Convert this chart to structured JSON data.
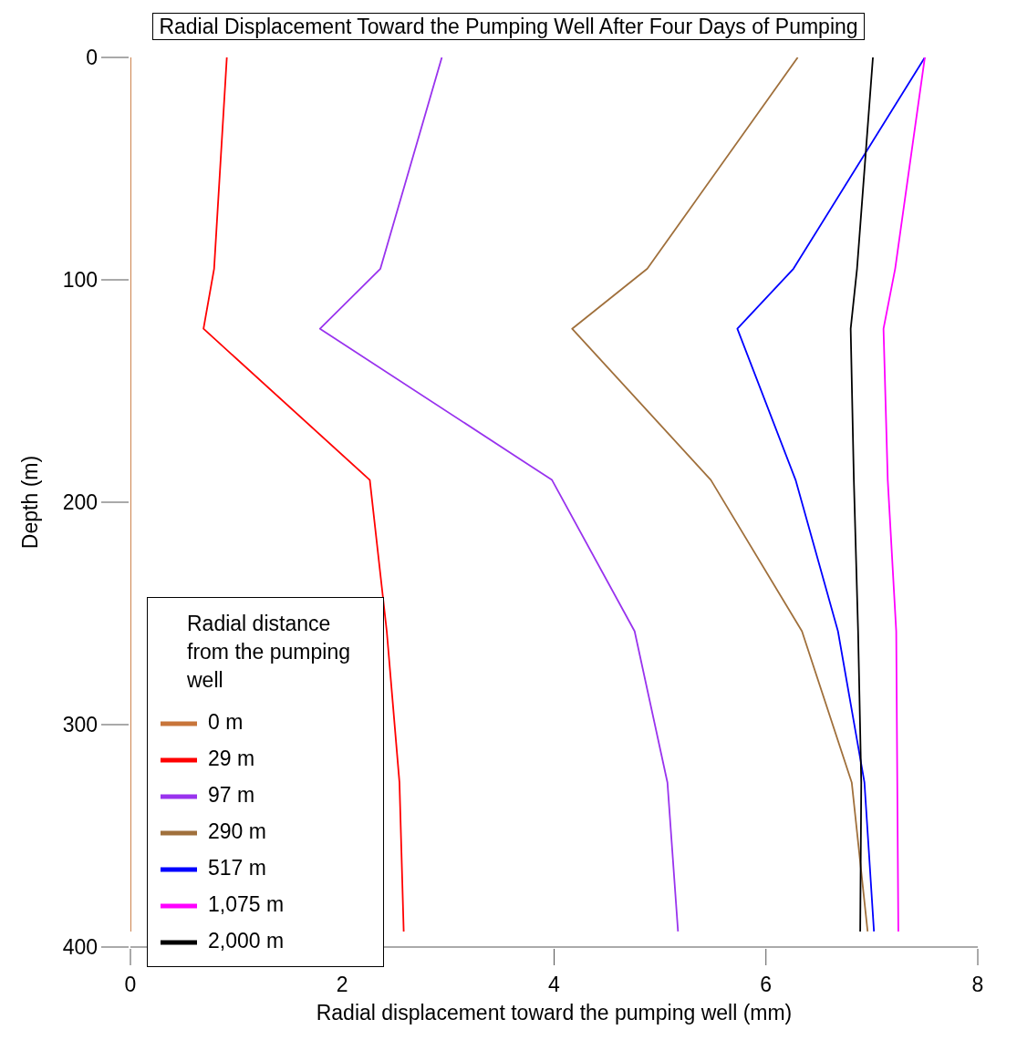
{
  "chart_data": {
    "type": "line",
    "title": "Radial Displacement Toward the Pumping Well After Four Days of Pumping",
    "xlabel": "Radial displacement toward the pumping well (mm)",
    "ylabel": "Depth (m)",
    "legend_title": "Radial distance from the pumping well",
    "legend": "bottom left",
    "grid": false,
    "marker": "none",
    "line_style": "solid",
    "xlim": [
      0,
      8
    ],
    "xticks": [
      0,
      2,
      4,
      6,
      8
    ],
    "ylim": [
      400,
      0
    ],
    "yticks": [
      0,
      100,
      200,
      300,
      400
    ],
    "series": [
      {
        "name": "0 m",
        "color": "#c8753a",
        "x": [
          0,
          0,
          0,
          0,
          0,
          0,
          0
        ],
        "values": [
          0,
          95,
          122,
          190,
          258,
          326,
          393
        ]
      },
      {
        "name": "29 m",
        "color": "#ff0000",
        "x": [
          0.91,
          0.79,
          0.69,
          2.26,
          2.42,
          2.54,
          2.58
        ],
        "values": [
          0,
          95,
          122,
          190,
          258,
          326,
          393
        ]
      },
      {
        "name": "97 m",
        "color": "#9933ee",
        "x": [
          2.94,
          2.36,
          1.79,
          3.98,
          4.76,
          5.07,
          5.17
        ],
        "values": [
          0,
          95,
          122,
          190,
          258,
          326,
          393
        ]
      },
      {
        "name": "290 m",
        "color": "#a0703c",
        "x": [
          6.3,
          4.88,
          4.17,
          5.48,
          6.34,
          6.81,
          6.96
        ],
        "values": [
          0,
          95,
          122,
          190,
          258,
          326,
          393
        ]
      },
      {
        "name": "517 m",
        "color": "#0000ff",
        "x": [
          7.5,
          6.26,
          5.73,
          6.28,
          6.68,
          6.93,
          7.02
        ],
        "values": [
          0,
          95,
          122,
          190,
          258,
          326,
          393
        ]
      },
      {
        "name": "1,075 m",
        "color": "#ff00ff",
        "x": [
          7.5,
          7.22,
          7.11,
          7.15,
          7.23,
          7.24,
          7.25
        ],
        "values": [
          0,
          95,
          122,
          190,
          258,
          326,
          393
        ]
      },
      {
        "name": "2,000 m",
        "color": "#000000",
        "x": [
          7.01,
          6.86,
          6.8,
          6.83,
          6.87,
          6.9,
          6.89
        ],
        "values": [
          0,
          95,
          122,
          190,
          258,
          326,
          393
        ]
      }
    ]
  }
}
